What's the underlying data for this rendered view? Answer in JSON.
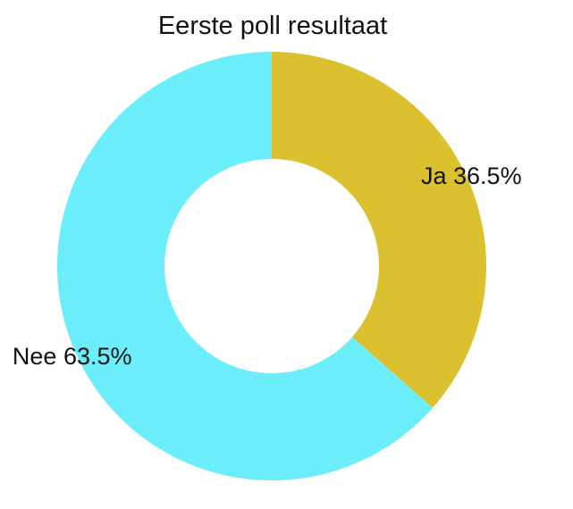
{
  "chart_data": {
    "type": "pie",
    "title": "Eerste poll resultaat",
    "donut": true,
    "slices": [
      {
        "label": "Ja",
        "value": 36.5,
        "display": "Ja 36.5%",
        "color": "#DBC130"
      },
      {
        "label": "Nee",
        "value": 63.5,
        "display": "Nee 63.5%",
        "color": "#6BEEFA"
      }
    ]
  }
}
